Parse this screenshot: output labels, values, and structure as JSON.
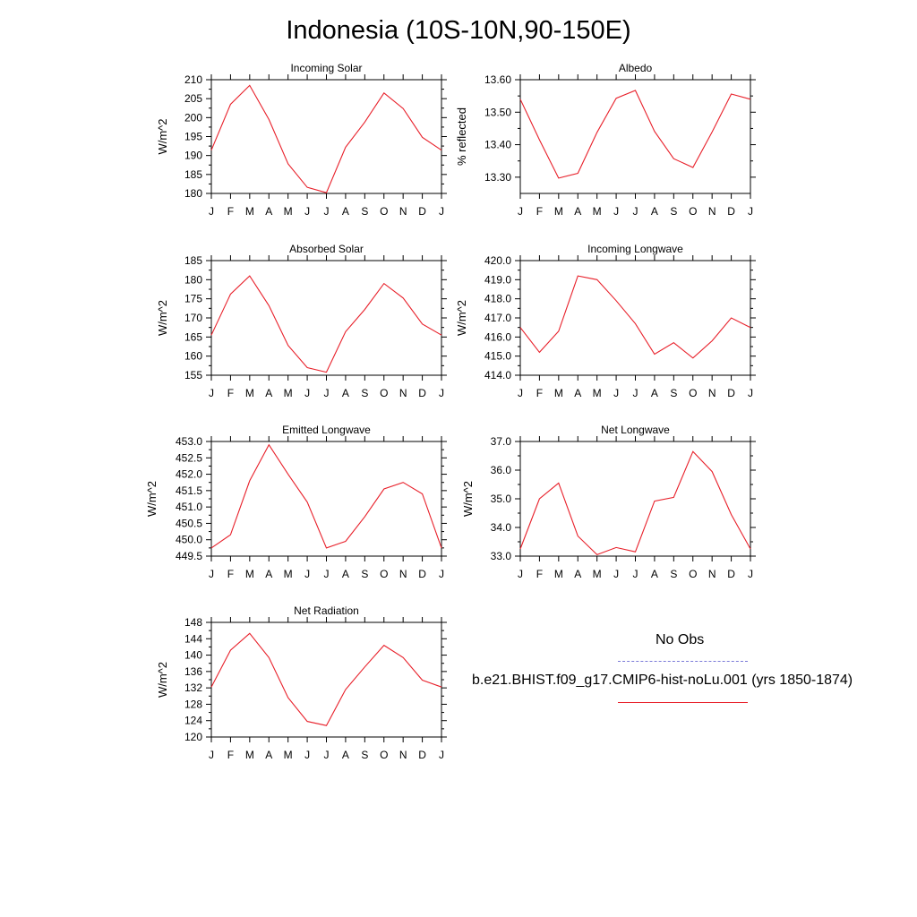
{
  "title": "Indonesia (10S-10N,90-150E)",
  "colors": {
    "model_line": "#e8202a",
    "obs_line": "#7a7ad8",
    "axis": "#000000"
  },
  "months": [
    "J",
    "F",
    "M",
    "A",
    "M",
    "J",
    "J",
    "A",
    "S",
    "O",
    "N",
    "D",
    "J"
  ],
  "legend": {
    "obs_label": "No Obs",
    "model_label": "b.e21.BHIST.f09_g17.CMIP6-hist-noLu.001 (yrs 1850-1874)"
  },
  "chart_data": [
    {
      "type": "line",
      "title": "Incoming Solar",
      "ylabel": "W/m^2",
      "ylim": [
        180,
        210
      ],
      "yticks": [
        "210",
        "205",
        "200",
        "195",
        "190",
        "185",
        "180"
      ],
      "ytick_values": [
        210,
        205,
        200,
        195,
        190,
        185,
        180
      ],
      "values": [
        191.4,
        203.5,
        208.5,
        199.5,
        187.8,
        181.6,
        180.2,
        192.2,
        198.8,
        206.5,
        202.4,
        194.8,
        191.4
      ]
    },
    {
      "type": "line",
      "title": "Albedo",
      "ylabel": "% reflected",
      "ylim": [
        13.25,
        13.6
      ],
      "yticks": [
        "13.60",
        "13.50",
        "13.40",
        "13.30"
      ],
      "ytick_values": [
        13.6,
        13.5,
        13.4,
        13.3
      ],
      "values": [
        13.54,
        13.415,
        13.297,
        13.312,
        13.438,
        13.543,
        13.567,
        13.441,
        13.357,
        13.33,
        13.439,
        13.556,
        13.54
      ]
    },
    {
      "type": "line",
      "title": "Absorbed Solar",
      "ylabel": "W/m^2",
      "ylim": [
        155,
        185
      ],
      "yticks": [
        "185",
        "180",
        "175",
        "170",
        "165",
        "160",
        "155"
      ],
      "ytick_values": [
        185,
        180,
        175,
        170,
        165,
        160,
        155
      ],
      "values": [
        165.5,
        176.2,
        181.0,
        173.2,
        162.8,
        157.0,
        155.8,
        166.4,
        172.2,
        179.0,
        175.2,
        168.4,
        165.5
      ]
    },
    {
      "type": "line",
      "title": "Incoming Longwave",
      "ylabel": "W/m^2",
      "ylim": [
        414,
        420
      ],
      "yticks": [
        "420.0",
        "419.0",
        "418.0",
        "417.0",
        "416.0",
        "415.0",
        "414.0"
      ],
      "ytick_values": [
        420,
        419,
        418,
        417,
        416,
        415,
        414
      ],
      "values": [
        416.5,
        415.2,
        416.3,
        419.2,
        419.0,
        417.9,
        416.7,
        415.1,
        415.7,
        414.9,
        415.8,
        417.0,
        416.5
      ]
    },
    {
      "type": "line",
      "title": "Emitted Longwave",
      "ylabel": "W/m^2",
      "ylim": [
        449.5,
        453
      ],
      "yticks": [
        "453.0",
        "452.5",
        "452.0",
        "451.5",
        "451.0",
        "450.5",
        "450.0",
        "449.5"
      ],
      "ytick_values": [
        453,
        452.5,
        452,
        451.5,
        451,
        450.5,
        450,
        449.5
      ],
      "values": [
        449.75,
        450.15,
        451.8,
        452.9,
        452.0,
        451.15,
        449.75,
        449.95,
        450.7,
        451.55,
        451.75,
        451.4,
        449.75
      ]
    },
    {
      "type": "line",
      "title": "Net Longwave",
      "ylabel": "W/m^2",
      "ylim": [
        33,
        37
      ],
      "yticks": [
        "37.0",
        "36.0",
        "35.0",
        "34.0",
        "33.0"
      ],
      "ytick_values": [
        37,
        36,
        35,
        34,
        33
      ],
      "values": [
        33.25,
        35.0,
        35.55,
        33.7,
        33.05,
        33.3,
        33.15,
        34.92,
        35.05,
        36.65,
        35.95,
        34.45,
        33.25
      ]
    },
    {
      "type": "line",
      "title": "Net Radiation",
      "ylabel": "W/m^2",
      "ylim": [
        120,
        148
      ],
      "yticks": [
        "148",
        "144",
        "140",
        "136",
        "132",
        "128",
        "124",
        "120"
      ],
      "ytick_values": [
        148,
        144,
        140,
        136,
        132,
        128,
        124,
        120
      ],
      "values": [
        132.2,
        141.2,
        145.3,
        139.4,
        129.6,
        123.8,
        122.8,
        131.6,
        137.1,
        142.4,
        139.4,
        133.9,
        132.2
      ]
    }
  ]
}
